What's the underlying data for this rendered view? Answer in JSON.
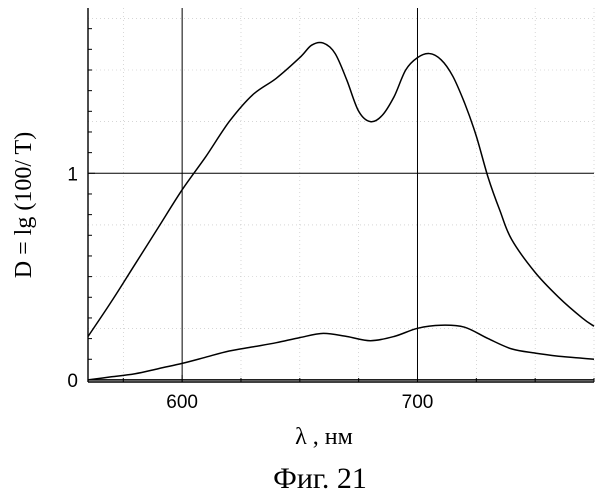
{
  "chart_data": {
    "type": "line",
    "title": "",
    "caption": "Фиг. 21",
    "xlabel": "λ , нм",
    "ylabel": "D = lg (100/ T)",
    "xlim": [
      560,
      775
    ],
    "ylim": [
      -0.01,
      1.8
    ],
    "x_ticks": [
      {
        "value": 600,
        "label": "600"
      },
      {
        "value": 700,
        "label": "700"
      }
    ],
    "y_ticks": [
      {
        "value": 0,
        "label": "0"
      },
      {
        "value": 1,
        "label": "1"
      }
    ],
    "grid": true,
    "legend": "none",
    "series": [
      {
        "x": [
          560,
          570,
          580,
          590,
          600,
          610,
          620,
          630,
          640,
          650,
          655,
          660,
          665,
          670,
          675,
          680,
          685,
          690,
          695,
          700,
          705,
          710,
          715,
          720,
          725,
          730,
          735,
          740,
          750,
          760,
          770,
          775
        ],
        "y": [
          0.21,
          0.38,
          0.56,
          0.74,
          0.92,
          1.08,
          1.25,
          1.38,
          1.46,
          1.56,
          1.62,
          1.63,
          1.58,
          1.45,
          1.3,
          1.25,
          1.28,
          1.37,
          1.5,
          1.56,
          1.58,
          1.55,
          1.47,
          1.34,
          1.18,
          0.98,
          0.82,
          0.68,
          0.52,
          0.4,
          0.3,
          0.26
        ]
      },
      {
        "x": [
          560,
          570,
          580,
          590,
          600,
          610,
          620,
          630,
          640,
          650,
          660,
          670,
          680,
          690,
          700,
          710,
          720,
          730,
          740,
          750,
          760,
          770,
          775
        ],
        "y": [
          0.0,
          0.015,
          0.03,
          0.055,
          0.08,
          0.11,
          0.14,
          0.16,
          0.18,
          0.205,
          0.225,
          0.21,
          0.19,
          0.21,
          0.25,
          0.265,
          0.255,
          0.2,
          0.15,
          0.13,
          0.115,
          0.105,
          0.1
        ]
      },
      {
        "x": [
          560,
          775
        ],
        "y": [
          0.0,
          0.0
        ]
      }
    ]
  }
}
